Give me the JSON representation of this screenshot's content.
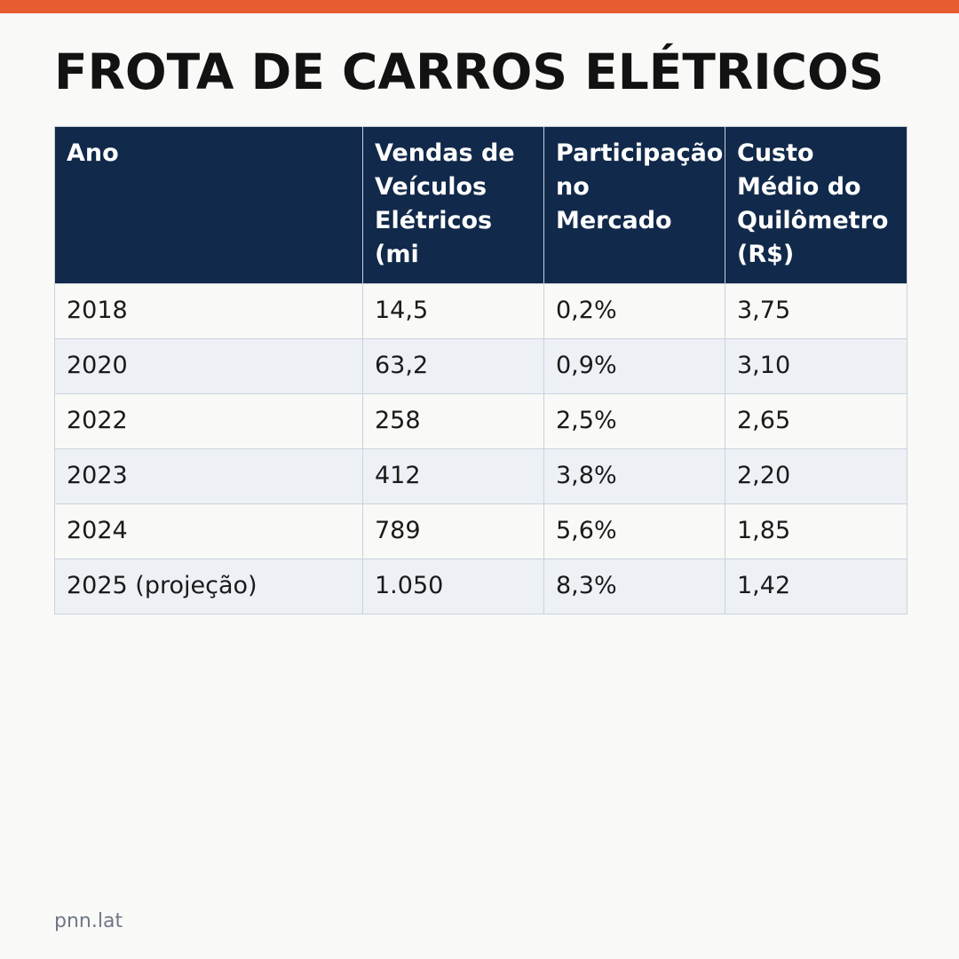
{
  "colors": {
    "accent_bar": "#e85d2f",
    "header_bg": "#11294a",
    "row_odd_bg": "#f9f9f7",
    "row_even_bg": "#edf1f5"
  },
  "title": "FROTA DE CARROS ELÉTRICOS",
  "footer": "pnn.lat",
  "chart_data": {
    "type": "table",
    "title": "FROTA DE CARROS ELÉTRICOS",
    "columns": [
      "Ano",
      "Vendas de\nVeículos\nElétricos\n(mi",
      "Participação\nno\nMercado",
      "Custo\nMédio do\nQuilômetro\n(R$)"
    ],
    "rows": [
      [
        "2018",
        "14,5",
        "0,2%",
        "3,75"
      ],
      [
        "2020",
        "63,2",
        "0,9%",
        "3,10"
      ],
      [
        "2022",
        "258",
        "2,5%",
        "2,65"
      ],
      [
        "2023",
        "412",
        "3,8%",
        "2,20"
      ],
      [
        "2024",
        "789",
        "5,6%",
        "1,85"
      ],
      [
        "2025 (projeção)",
        "1.050",
        "8,3%",
        "1,42"
      ]
    ]
  }
}
